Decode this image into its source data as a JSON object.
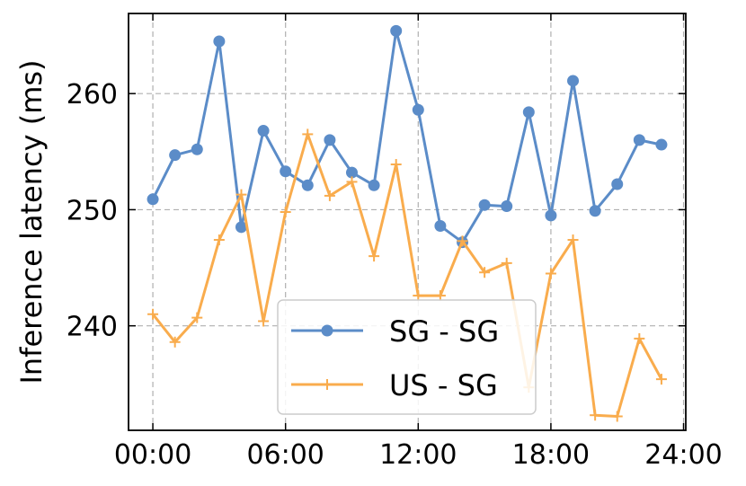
{
  "chart_data": {
    "type": "line",
    "title": "",
    "xlabel": "",
    "ylabel": "Inference latency (ms)",
    "x_ticks": [
      "00:00",
      "06:00",
      "12:00",
      "18:00",
      "24:00"
    ],
    "x_tick_hours": [
      0,
      6,
      12,
      18,
      24
    ],
    "y_ticks": [
      240,
      250,
      260
    ],
    "xlim": [
      -1.1,
      24.1
    ],
    "ylim": [
      231,
      266.9
    ],
    "grid": true,
    "legend_position": "lower-center",
    "x": [
      0,
      1,
      2,
      3,
      4,
      5,
      6,
      7,
      8,
      9,
      10,
      11,
      12,
      13,
      14,
      15,
      16,
      17,
      18,
      19,
      20,
      21,
      22,
      23
    ],
    "series": [
      {
        "name": "SG - SG",
        "color": "#5b8cc8",
        "marker": "circle",
        "values": [
          250.9,
          254.7,
          255.2,
          264.5,
          248.5,
          256.8,
          253.3,
          252.1,
          256.0,
          253.2,
          252.1,
          265.4,
          258.6,
          248.6,
          247.2,
          250.4,
          250.3,
          258.4,
          249.5,
          261.1,
          249.9,
          252.2,
          256.0,
          255.6
        ]
      },
      {
        "name": "US - SG",
        "color": "#f9ac4d",
        "marker": "plus",
        "values": [
          241.0,
          238.6,
          240.7,
          247.4,
          251.3,
          240.4,
          249.8,
          256.5,
          251.2,
          252.4,
          246.0,
          253.9,
          242.6,
          242.6,
          247.3,
          244.6,
          245.4,
          234.7,
          244.5,
          247.4,
          232.3,
          232.2,
          238.9,
          235.4
        ]
      }
    ]
  }
}
